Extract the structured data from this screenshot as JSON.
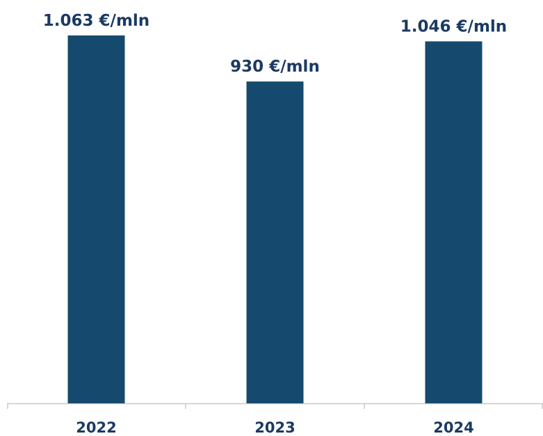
{
  "colors": {
    "bar": "#154A6E",
    "label": "#1B3A63",
    "axis": "#C8C8C8"
  },
  "chart_data": {
    "type": "bar",
    "categories": [
      "2022",
      "2023",
      "2024"
    ],
    "values": [
      1063,
      930,
      1046
    ],
    "data_labels": [
      "1.063 €/mln",
      "930 €/mln",
      "1.046 €/mln"
    ],
    "title": "",
    "xlabel": "",
    "ylabel": "",
    "ylim": [
      0,
      1063
    ],
    "grid": false,
    "legend": "none"
  }
}
